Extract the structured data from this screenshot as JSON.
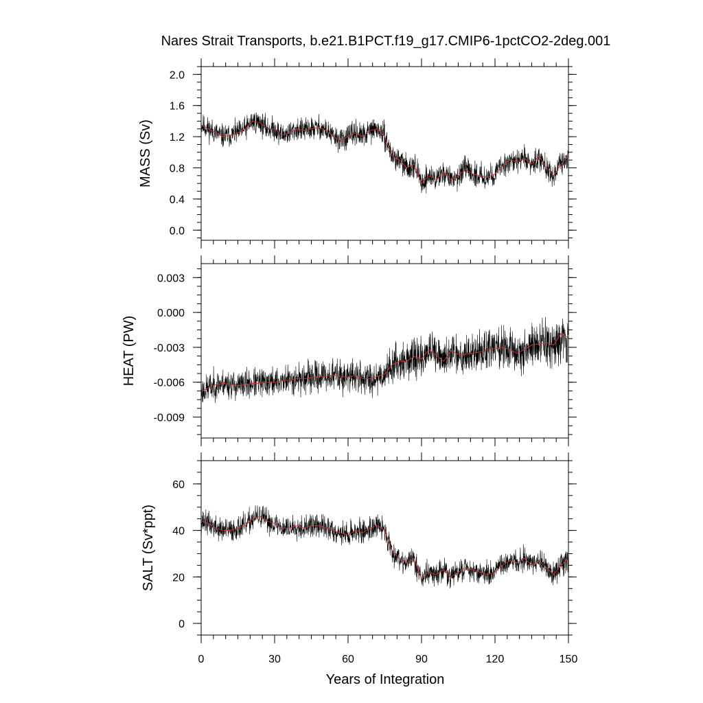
{
  "title": "Nares Strait Transports, b.e21.B1PCT.f19_g17.CMIP6-1pctCO2-2deg.001",
  "xlabel": "Years of Integration",
  "colors": {
    "raw": "#000000",
    "smooth": "#cc3333",
    "axes": "#000000"
  },
  "chart_data": [
    {
      "type": "line",
      "title": "Nares Strait Transports, b.e21.B1PCT.f19_g17.CMIP6-1pctCO2-2deg.001",
      "ylabel": "MASS (Sv)",
      "xlim": [
        0,
        150
      ],
      "ylim": [
        -0.13,
        2.1
      ],
      "xticks": [
        0,
        30,
        60,
        90,
        120,
        150
      ],
      "yticks": [
        0.0,
        0.4,
        0.8,
        1.2,
        1.6,
        2.0
      ],
      "ytick_labels": [
        "0.0",
        "0.4",
        "0.8",
        "1.2",
        "1.6",
        "2.0"
      ],
      "series_smooth": {
        "x": [
          0,
          3,
          6,
          9,
          12,
          15,
          18,
          21,
          24,
          27,
          30,
          33,
          36,
          39,
          42,
          45,
          48,
          51,
          54,
          57,
          60,
          63,
          66,
          69,
          72,
          75,
          78,
          81,
          84,
          87,
          90,
          93,
          96,
          99,
          102,
          105,
          108,
          111,
          114,
          117,
          120,
          123,
          126,
          129,
          132,
          135,
          138,
          141,
          144,
          147,
          150
        ],
        "y": [
          1.35,
          1.3,
          1.25,
          1.2,
          1.22,
          1.25,
          1.3,
          1.4,
          1.38,
          1.3,
          1.3,
          1.22,
          1.25,
          1.3,
          1.28,
          1.3,
          1.32,
          1.28,
          1.2,
          1.15,
          1.2,
          1.25,
          1.2,
          1.28,
          1.3,
          1.2,
          0.95,
          0.9,
          0.8,
          0.85,
          0.6,
          0.7,
          0.65,
          0.75,
          0.65,
          0.7,
          0.78,
          0.72,
          0.7,
          0.68,
          0.72,
          0.82,
          0.9,
          0.88,
          0.92,
          0.85,
          0.95,
          0.8,
          0.7,
          0.85,
          0.95
        ]
      },
      "noise_amplitude": 0.22,
      "seed": 11
    },
    {
      "type": "line",
      "ylabel": "HEAT (PW)",
      "xlim": [
        0,
        150
      ],
      "ylim": [
        -0.0108,
        0.0042
      ],
      "xticks": [
        0,
        30,
        60,
        90,
        120,
        150
      ],
      "yticks": [
        -0.009,
        -0.006,
        -0.003,
        0.0,
        0.003
      ],
      "ytick_labels": [
        "-0.009",
        "-0.006",
        "-0.003",
        "0.000",
        "0.003"
      ],
      "series_smooth": {
        "x": [
          0,
          3,
          6,
          9,
          12,
          15,
          18,
          21,
          24,
          27,
          30,
          33,
          36,
          39,
          42,
          45,
          48,
          51,
          54,
          57,
          60,
          63,
          66,
          69,
          72,
          75,
          78,
          81,
          84,
          87,
          90,
          93,
          96,
          99,
          102,
          105,
          108,
          111,
          114,
          117,
          120,
          123,
          126,
          129,
          132,
          135,
          138,
          141,
          144,
          147,
          150
        ],
        "y": [
          -0.0068,
          -0.0065,
          -0.0062,
          -0.0061,
          -0.0062,
          -0.0063,
          -0.0062,
          -0.0061,
          -0.0061,
          -0.006,
          -0.006,
          -0.0059,
          -0.0058,
          -0.0057,
          -0.0057,
          -0.0056,
          -0.0055,
          -0.0055,
          -0.0054,
          -0.0055,
          -0.0056,
          -0.0054,
          -0.0057,
          -0.0057,
          -0.0055,
          -0.0053,
          -0.0045,
          -0.0042,
          -0.0042,
          -0.0038,
          -0.004,
          -0.0032,
          -0.0037,
          -0.0042,
          -0.0033,
          -0.0036,
          -0.0036,
          -0.0035,
          -0.0034,
          -0.0032,
          -0.0031,
          -0.003,
          -0.0032,
          -0.0035,
          -0.0032,
          -0.0028,
          -0.0027,
          -0.0026,
          -0.0028,
          -0.0018,
          -0.0022
        ]
      },
      "noise_amplitude": 0.0018,
      "noise_growth": 1.8,
      "seed": 23
    },
    {
      "type": "line",
      "ylabel": "SALT (Sv*ppt)",
      "xlim": [
        0,
        150
      ],
      "ylim": [
        -5,
        70
      ],
      "xticks": [
        0,
        30,
        60,
        90,
        120,
        150
      ],
      "xtick_labels": [
        "0",
        "30",
        "60",
        "90",
        "120",
        "150"
      ],
      "yticks": [
        0,
        20,
        40,
        60
      ],
      "ytick_labels": [
        "0",
        "20",
        "40",
        "60"
      ],
      "series_smooth": {
        "x": [
          0,
          3,
          6,
          9,
          12,
          15,
          18,
          21,
          24,
          27,
          30,
          33,
          36,
          39,
          42,
          45,
          48,
          51,
          54,
          57,
          60,
          63,
          66,
          69,
          72,
          75,
          78,
          81,
          84,
          87,
          90,
          93,
          96,
          99,
          102,
          105,
          108,
          111,
          114,
          117,
          120,
          123,
          126,
          129,
          132,
          135,
          138,
          141,
          144,
          147,
          150
        ],
        "y": [
          44,
          43,
          41,
          40,
          40,
          41,
          42,
          45,
          46,
          44,
          43,
          41,
          41,
          42,
          41,
          42,
          42,
          41,
          40,
          39,
          38,
          40,
          39,
          41,
          42,
          40,
          31,
          28,
          26,
          28,
          19,
          22,
          21,
          23,
          20,
          22,
          24,
          23,
          22,
          21,
          22,
          25,
          27,
          26,
          28,
          25,
          27,
          24,
          21,
          25,
          28
        ]
      },
      "noise_amplitude": 7.5,
      "seed": 37
    }
  ]
}
